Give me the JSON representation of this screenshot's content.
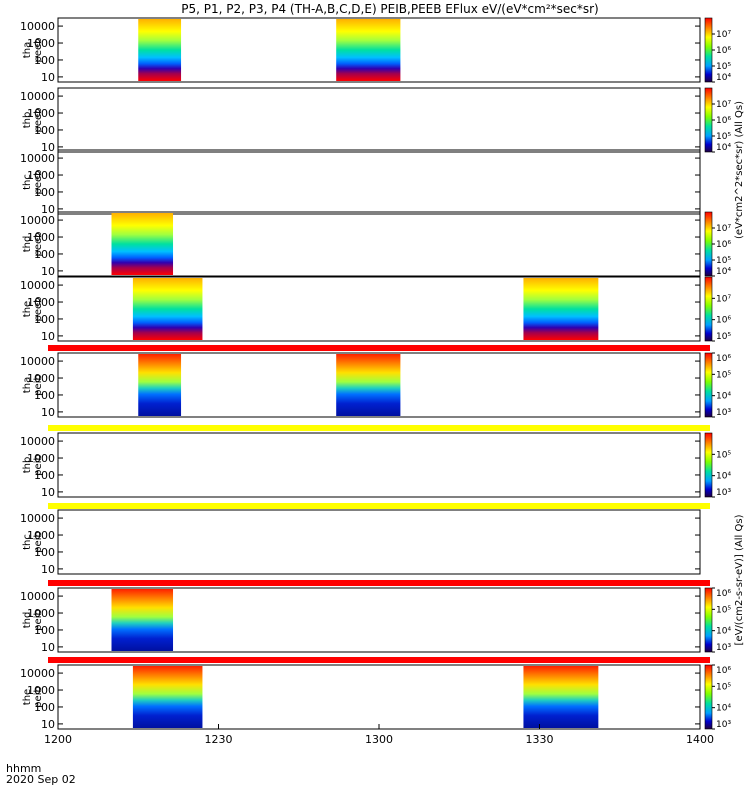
{
  "title": "P5, P1, P2, P3, P4 (TH-A,B,C,D,E) PEIB,PEEB EFlux eV/(eV*cm²*sec*sr)",
  "time_axis": {
    "label_line1": "hhmm",
    "label_line2": "2020 Sep 02",
    "ticks": [
      "1200",
      "1230",
      "1300",
      "1330",
      "1400"
    ]
  },
  "colorbar_labels": {
    "electron": "(eV*cm2^2*sec*sr) (All Qs)",
    "ion": "[eV/(cm2-s-sr-eV)] (All Qs)"
  },
  "panels": [
    {
      "id": "tha-peeb",
      "line1": "tha",
      "line2": "peeb"
    },
    {
      "id": "thb-peeb",
      "line1": "thb",
      "line2": "peeb"
    },
    {
      "id": "thc-peeb",
      "line1": "thc",
      "line2": "peeb"
    },
    {
      "id": "thd-peeb",
      "line1": "thd",
      "line2": "peeb"
    },
    {
      "id": "the-peeb",
      "line1": "the",
      "line2": "peeb"
    },
    {
      "id": "tha-peib",
      "line1": "tha",
      "line2": "peib"
    },
    {
      "id": "thb-peib",
      "line1": "thb",
      "line2": "peib"
    },
    {
      "id": "thc-peib",
      "line1": "thc",
      "line2": "peib"
    },
    {
      "id": "thd-peib",
      "line1": "thd",
      "line2": "peib"
    },
    {
      "id": "the-peib",
      "line1": "the",
      "line2": "peib"
    }
  ],
  "chart_data": {
    "type": "heatmap",
    "title": "P5, P1, P2, P3, P4 (TH-A,B,C,D,E) PEIB,PEEB EFlux eV/(eV*cm²*sec*sr)",
    "xlabel": "hhmm 2020 Sep 02",
    "x_ticks": [
      "1200",
      "1230",
      "1300",
      "1330",
      "1400"
    ],
    "xlim_minutes": [
      0,
      120
    ],
    "ylim": [
      5,
      30000
    ],
    "ylog": true,
    "y_ticks": [
      "10",
      "100",
      "1000",
      "10000"
    ],
    "colorscale": "rainbow",
    "panels": [
      {
        "name": "tha peeb",
        "kind": "electron",
        "intervals_min": [
          [
            15,
            23
          ],
          [
            52,
            64
          ]
        ],
        "cbar_range": [
          10000,
          100000000
        ],
        "cbar_ticks": [
          "10⁴",
          "10⁵",
          "10⁶",
          "10⁷"
        ]
      },
      {
        "name": "thb peeb",
        "kind": "electron",
        "intervals_min": [],
        "cbar_range": [
          10000,
          100000000
        ],
        "cbar_ticks": [
          "10⁴",
          "10⁵",
          "10⁶",
          "10⁷"
        ]
      },
      {
        "name": "thc peeb",
        "kind": "electron",
        "intervals_min": [],
        "cbar_range": null,
        "cbar_ticks": []
      },
      {
        "name": "thd peeb",
        "kind": "electron",
        "intervals_min": [
          [
            10,
            21.5
          ]
        ],
        "cbar_range": [
          10000,
          100000000
        ],
        "cbar_ticks": [
          "10⁴",
          "10⁵",
          "10⁶",
          "10⁷"
        ]
      },
      {
        "name": "the peeb",
        "kind": "electron",
        "intervals_min": [
          [
            14,
            27
          ],
          [
            87,
            101
          ]
        ],
        "cbar_range": [
          100000,
          100000000
        ],
        "cbar_ticks": [
          "10⁵",
          "10⁶",
          "10⁷"
        ]
      },
      {
        "name": "tha peib",
        "kind": "ion",
        "intervals_min": [
          [
            15,
            23
          ],
          [
            52,
            64
          ]
        ],
        "cbar_range": [
          1000,
          1000000
        ],
        "cbar_ticks": [
          "10³",
          "10⁴",
          "10⁵",
          "10⁶"
        ]
      },
      {
        "name": "thb peib",
        "kind": "ion",
        "intervals_min": [],
        "cbar_range": [
          1000,
          1000000
        ],
        "cbar_ticks": [
          "10³",
          "10⁴",
          "10⁵"
        ]
      },
      {
        "name": "thc peib",
        "kind": "ion",
        "intervals_min": [],
        "cbar_range": null,
        "cbar_ticks": []
      },
      {
        "name": "thd peib",
        "kind": "ion",
        "intervals_min": [
          [
            10,
            21.5
          ]
        ],
        "cbar_range": [
          1000,
          1000000
        ],
        "cbar_ticks": [
          "10³",
          "10⁴",
          "10⁵",
          "10⁶"
        ]
      },
      {
        "name": "the peib",
        "kind": "ion",
        "intervals_min": [
          [
            14,
            27
          ],
          [
            87,
            101
          ]
        ],
        "cbar_range": [
          1000,
          1000000
        ],
        "cbar_ticks": [
          "10³",
          "10⁴",
          "10⁵",
          "10⁶"
        ]
      }
    ],
    "mode_bars": [
      {
        "after_panel": "the peeb",
        "color": "#ff0000"
      },
      {
        "after_panel": "tha peib",
        "color": "#ffff00"
      },
      {
        "after_panel": "thb peib",
        "color": "#ffff00"
      },
      {
        "after_panel": "thc peib",
        "color": "#ff0000"
      },
      {
        "after_panel": "thd peib",
        "color": "#ff0000"
      }
    ]
  }
}
